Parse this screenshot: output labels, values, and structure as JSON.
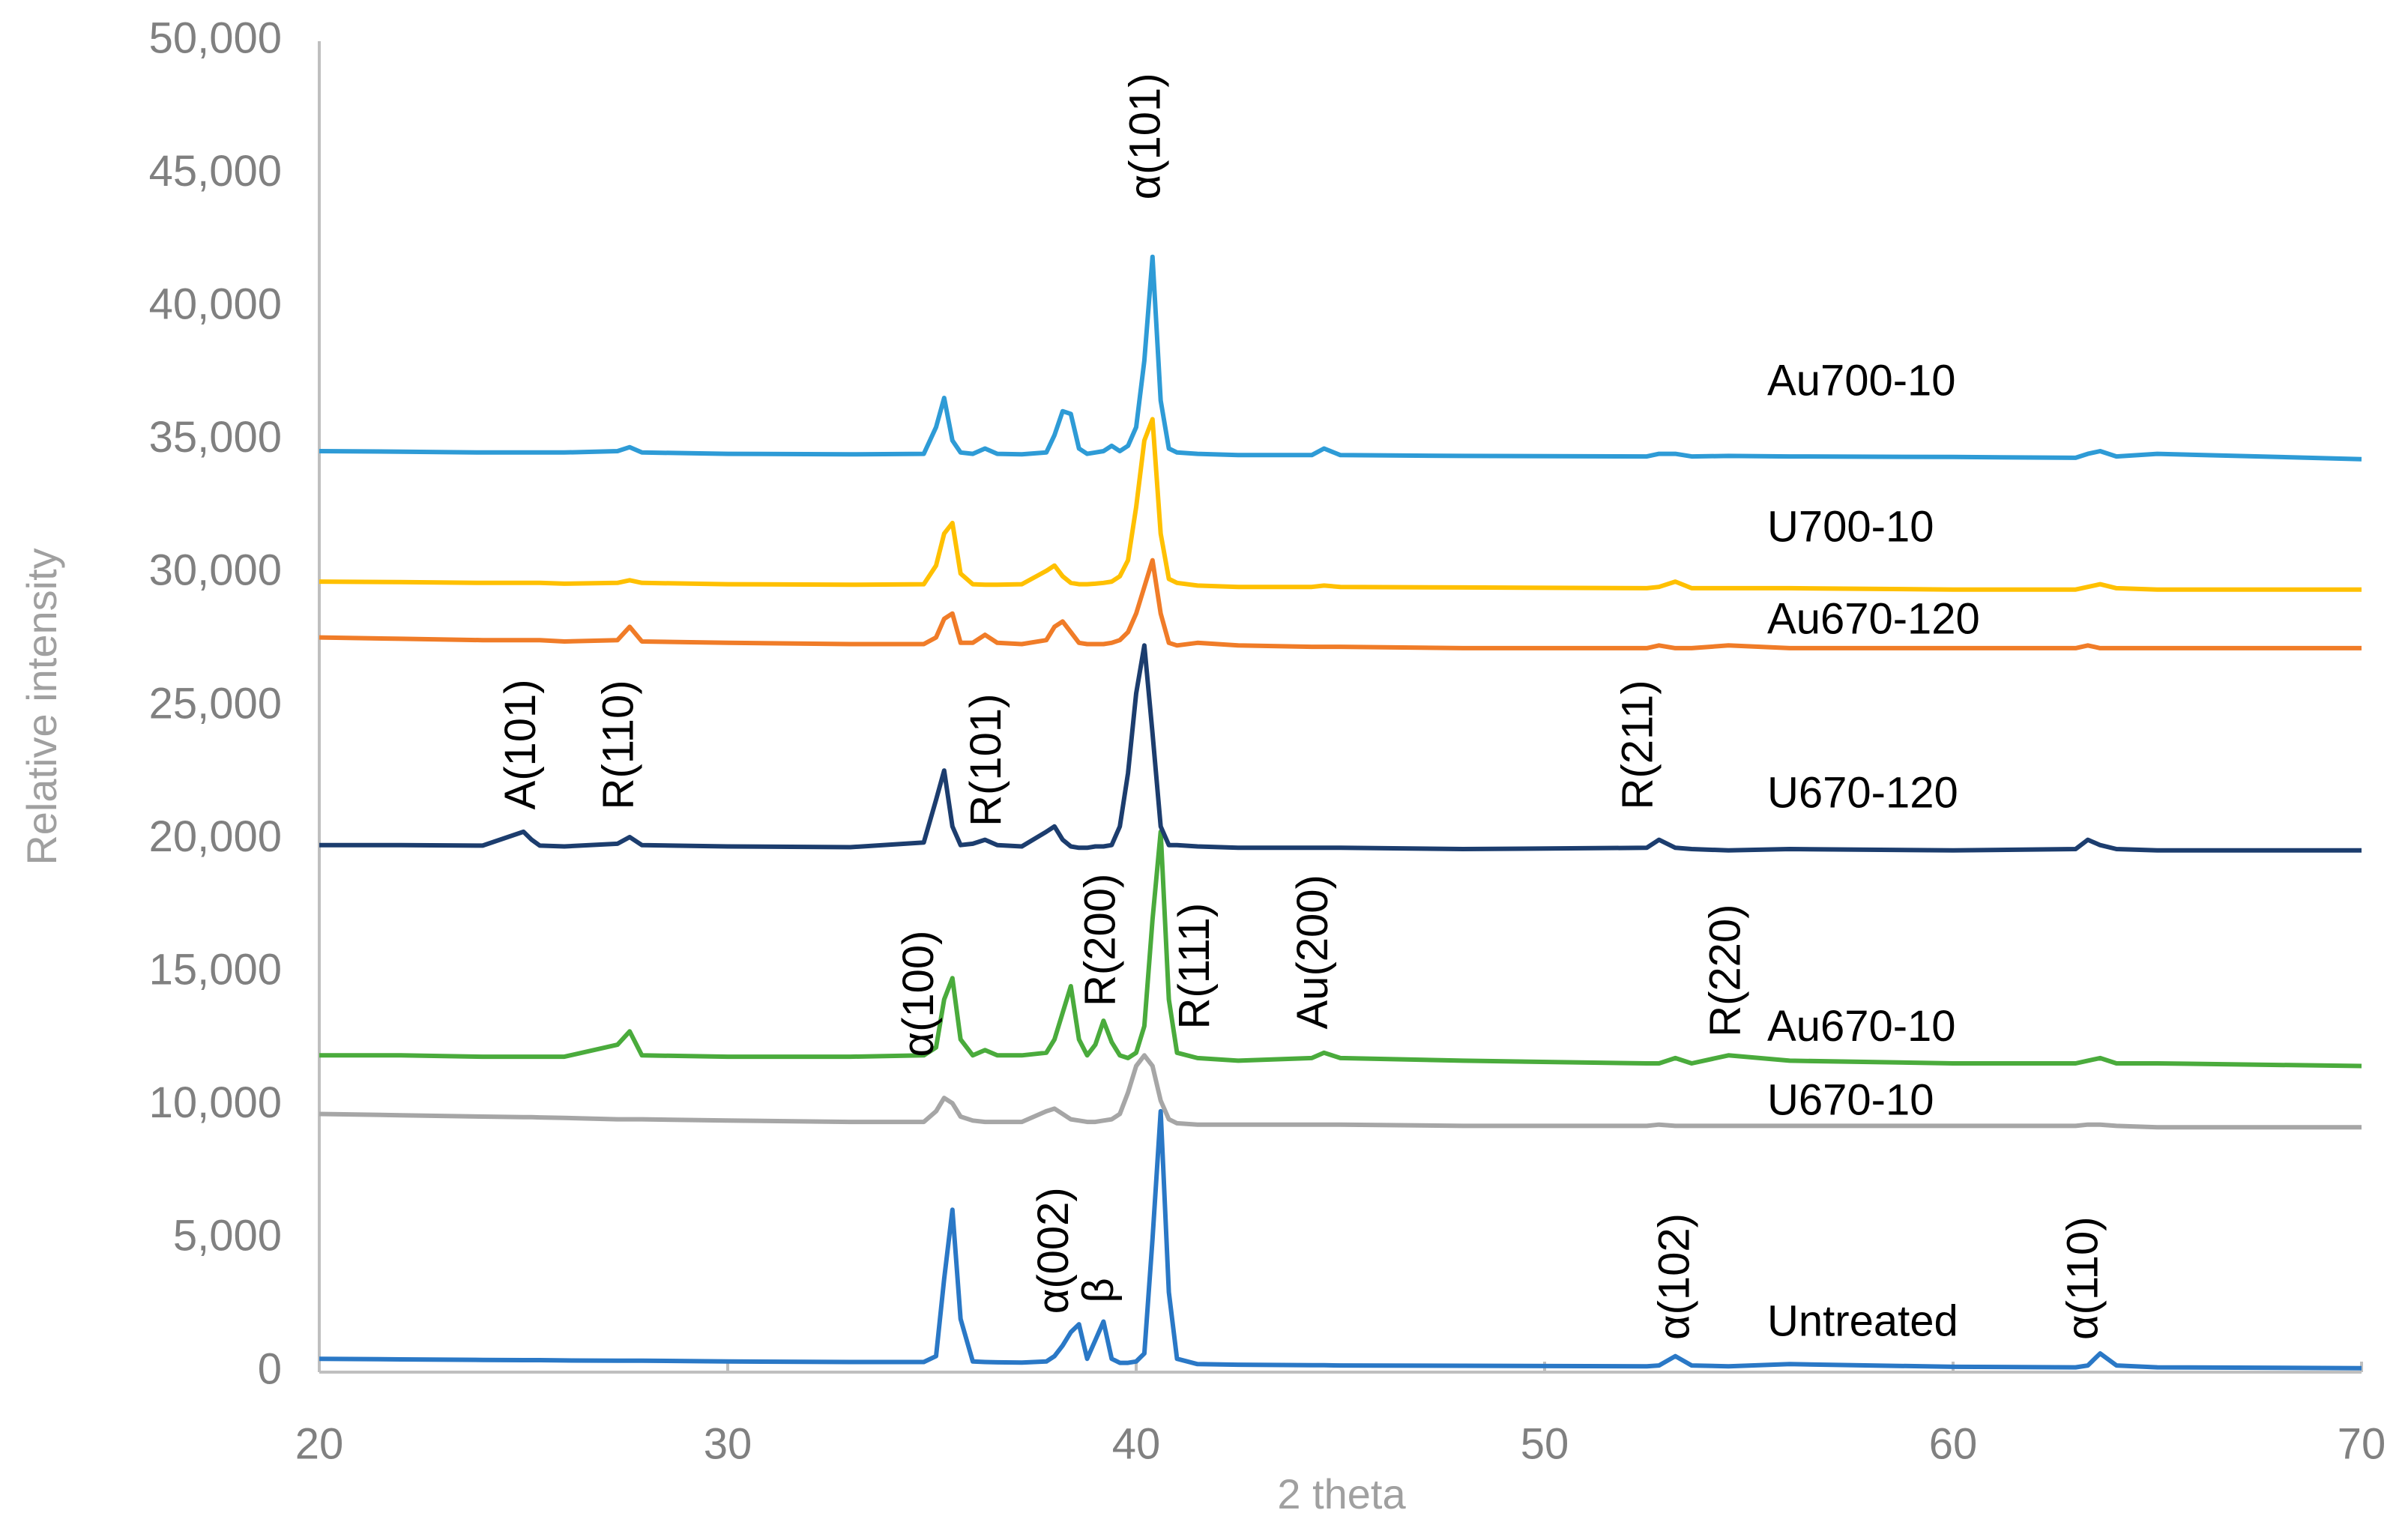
{
  "chart_data": {
    "type": "line",
    "x_label": "2 theta",
    "y_label": "Relative intensity",
    "x": [
      20,
      22,
      24,
      25,
      25.2,
      25.4,
      26,
      27.3,
      27.6,
      27.9,
      30,
      33,
      34.8,
      35.1,
      35.3,
      35.5,
      35.7,
      36.0,
      36.3,
      36.6,
      37.2,
      37.8,
      38.0,
      38.2,
      38.4,
      38.6,
      38.8,
      39.0,
      39.2,
      39.4,
      39.6,
      39.8,
      40.0,
      40.2,
      40.4,
      40.6,
      40.8,
      41.0,
      41.5,
      42.5,
      44.3,
      44.6,
      45,
      48,
      52.5,
      52.8,
      53.2,
      53.6,
      54.5,
      56,
      60,
      63,
      63.3,
      63.6,
      64,
      65,
      70
    ],
    "series": [
      {
        "name": "Untreated",
        "color": "#2a78c6",
        "values": [
          500,
          480,
          460,
          450,
          450,
          450,
          440,
          430,
          430,
          430,
          400,
          380,
          380,
          600,
          3500,
          6100,
          2000,
          400,
          380,
          370,
          360,
          400,
          600,
          1000,
          1500,
          1800,
          500,
          1200,
          1900,
          500,
          350,
          350,
          400,
          700,
          5000,
          9800,
          3000,
          500,
          300,
          280,
          260,
          260,
          250,
          240,
          220,
          250,
          600,
          250,
          220,
          300,
          200,
          180,
          250,
          700,
          250,
          180,
          150
        ]
      },
      {
        "name": "U670-10",
        "color": "#a6a6a6",
        "values": [
          9700,
          9650,
          9600,
          9580,
          9580,
          9570,
          9550,
          9500,
          9500,
          9500,
          9450,
          9400,
          9400,
          9800,
          10300,
          10100,
          9600,
          9450,
          9400,
          9400,
          9400,
          9800,
          9900,
          9700,
          9500,
          9450,
          9400,
          9400,
          9450,
          9500,
          9700,
          10500,
          11500,
          11900,
          11500,
          10200,
          9500,
          9350,
          9300,
          9300,
          9300,
          9300,
          9300,
          9250,
          9250,
          9300,
          9250,
          9250,
          9250,
          9250,
          9250,
          9250,
          9300,
          9300,
          9250,
          9200,
          9200
        ]
      },
      {
        "name": "Au670-10",
        "color": "#4aab3c",
        "values": [
          11900,
          11900,
          11850,
          11850,
          11850,
          11850,
          11850,
          12300,
          12800,
          11900,
          11850,
          11850,
          11900,
          12200,
          14000,
          14800,
          12500,
          11900,
          12100,
          11900,
          11900,
          12000,
          12500,
          13500,
          14500,
          12500,
          11900,
          12300,
          13200,
          12400,
          11900,
          11800,
          12000,
          13000,
          17000,
          20300,
          14000,
          12000,
          11800,
          11700,
          11800,
          12000,
          11800,
          11700,
          11600,
          11600,
          11800,
          11600,
          11900,
          11700,
          11600,
          11600,
          11700,
          11800,
          11600,
          11600,
          11500
        ]
      },
      {
        "name": "U670-120",
        "color": "#1c3d6e",
        "values": [
          19800,
          19800,
          19780,
          20300,
          20000,
          19780,
          19750,
          19850,
          20100,
          19800,
          19750,
          19720,
          19900,
          21500,
          22600,
          20500,
          19800,
          19850,
          20000,
          19800,
          19750,
          20300,
          20500,
          20000,
          19750,
          19700,
          19700,
          19750,
          19750,
          19800,
          20500,
          22500,
          25500,
          27300,
          24000,
          20500,
          19800,
          19800,
          19750,
          19700,
          19700,
          19700,
          19700,
          19650,
          19700,
          20000,
          19700,
          19650,
          19600,
          19650,
          19600,
          19650,
          20000,
          19800,
          19650,
          19600,
          19600
        ]
      },
      {
        "name": "Au670-120",
        "color": "#f07c28",
        "values": [
          27600,
          27550,
          27500,
          27500,
          27500,
          27500,
          27450,
          27500,
          28000,
          27450,
          27400,
          27350,
          27350,
          27600,
          28300,
          28500,
          27400,
          27400,
          27700,
          27400,
          27350,
          27500,
          28000,
          28200,
          27800,
          27400,
          27350,
          27350,
          27350,
          27400,
          27500,
          27800,
          28500,
          29500,
          30500,
          28500,
          27400,
          27300,
          27400,
          27300,
          27250,
          27250,
          27250,
          27200,
          27200,
          27300,
          27200,
          27200,
          27300,
          27200,
          27200,
          27200,
          27300,
          27200,
          27200,
          27200,
          27200
        ]
      },
      {
        "name": "U700-10",
        "color": "#ffc000",
        "values": [
          29700,
          29680,
          29650,
          29650,
          29650,
          29650,
          29620,
          29650,
          29750,
          29650,
          29600,
          29580,
          29600,
          30300,
          31500,
          31900,
          30000,
          29600,
          29580,
          29580,
          29600,
          30100,
          30300,
          29900,
          29650,
          29600,
          29600,
          29620,
          29650,
          29700,
          29900,
          30500,
          32500,
          35000,
          35800,
          31500,
          29800,
          29650,
          29550,
          29500,
          29500,
          29550,
          29500,
          29480,
          29450,
          29500,
          29700,
          29450,
          29450,
          29450,
          29400,
          29400,
          29500,
          29600,
          29450,
          29400,
          29400
        ]
      },
      {
        "name": "Au700-10",
        "color": "#2e9bd6",
        "values": [
          34600,
          34580,
          34550,
          34550,
          34550,
          34550,
          34550,
          34600,
          34750,
          34550,
          34500,
          34480,
          34500,
          35500,
          36600,
          35000,
          34550,
          34500,
          34700,
          34500,
          34480,
          34550,
          35200,
          36100,
          36000,
          34700,
          34500,
          34550,
          34600,
          34800,
          34600,
          34800,
          35500,
          38000,
          41900,
          36500,
          34700,
          34550,
          34500,
          34450,
          34450,
          34700,
          34450,
          34420,
          34400,
          34500,
          34500,
          34400,
          34420,
          34400,
          34380,
          34350,
          34500,
          34600,
          34400,
          34500,
          34300
        ]
      }
    ],
    "annotations": [
      "α(101)",
      "A(101)",
      "R(110)",
      "R(101)",
      "R(211)",
      "α(100)",
      "R(200)",
      "R(111)",
      "Au(200)",
      "R(220)",
      "α(002)",
      "β",
      "α(102)",
      "α(110)"
    ],
    "xlim": [
      20,
      70
    ],
    "xticks": [
      20,
      30,
      40,
      50,
      60,
      70
    ],
    "ylim": [
      0,
      50000
    ],
    "yticks": [
      0,
      {
        "value": 5000,
        "label": "5,000"
      },
      {
        "value": 10000,
        "label": "10,000"
      },
      {
        "value": 15000,
        "label": "15,000"
      },
      {
        "value": 20000,
        "label": "20,000"
      },
      {
        "value": 25000,
        "label": "25,000"
      },
      {
        "value": 30000,
        "label": "30,000"
      },
      {
        "value": 35000,
        "label": "35,000"
      },
      {
        "value": 40000,
        "label": "40,000"
      },
      {
        "value": 45000,
        "label": "45,000"
      },
      {
        "value": 50000,
        "label": "50,000"
      }
    ]
  }
}
